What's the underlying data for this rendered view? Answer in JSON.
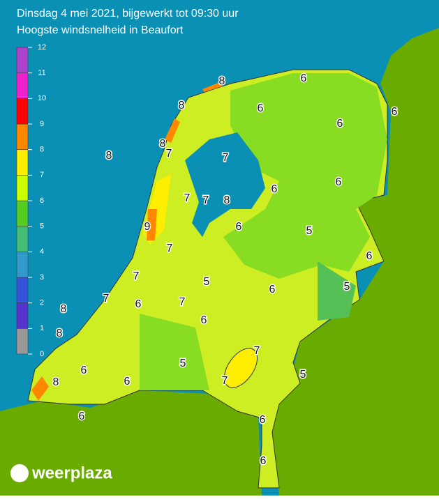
{
  "header": {
    "title": "Dinsdag 4 mei 2021, bijgewerkt tot 09:30 uur",
    "subtitle": "Hoogste windsnelheid in Beaufort"
  },
  "legend": {
    "ticks": [
      0,
      1,
      2,
      3,
      4,
      5,
      6,
      7,
      8,
      9,
      10,
      11,
      12
    ],
    "colors": [
      "#999999",
      "#5533cc",
      "#3355dd",
      "#3399cc",
      "#44bb77",
      "#55cc22",
      "#ccff00",
      "#ffee00",
      "#ff8800",
      "#ff0000",
      "#ee22cc",
      "#aa44cc"
    ]
  },
  "map": {
    "labels": [
      8,
      6,
      8,
      6,
      6,
      6,
      8,
      7,
      8,
      7,
      6,
      6,
      7,
      7,
      8,
      6,
      9,
      5,
      7,
      6,
      7,
      5,
      6,
      5,
      7,
      6,
      7,
      8,
      6,
      8,
      7,
      5,
      6,
      5,
      7,
      8,
      6,
      6,
      6,
      6
    ]
  },
  "logo": {
    "text": "weerplaza"
  }
}
